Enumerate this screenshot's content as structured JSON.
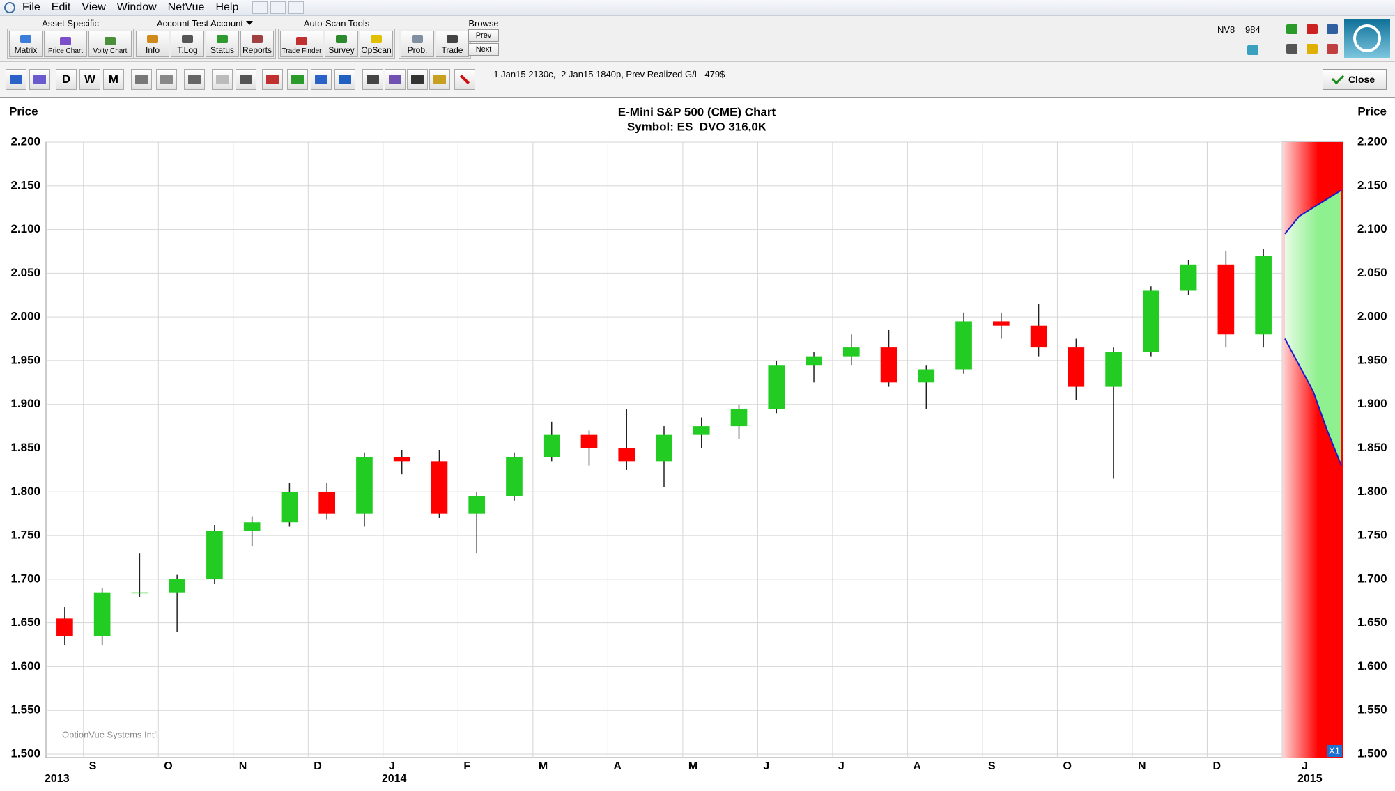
{
  "menu": [
    "File",
    "Edit",
    "View",
    "Window",
    "NetVue",
    "Help"
  ],
  "toolbar": {
    "groups": [
      {
        "label": "Asset Specific",
        "buttons": [
          "Matrix",
          "Price Chart",
          "Volty Chart"
        ]
      },
      {
        "label": "Account Test Account",
        "buttons": [
          "Info",
          "T.Log",
          "Status",
          "Reports"
        ]
      },
      {
        "label": "Auto-Scan Tools",
        "buttons": [
          "Trade Finder",
          "Survey",
          "OpScan"
        ]
      },
      {
        "buttons": [
          "Prob.",
          "Trade"
        ]
      },
      {
        "label": "Browse",
        "buttons": [
          "Prev",
          "Next"
        ]
      }
    ],
    "account": "NV8",
    "account_number": "984"
  },
  "chart_toolbar": {
    "periods": [
      "D",
      "W",
      "M"
    ],
    "position_text": "-1 Jan15 2130c, -2 Jan15 1840p, Prev Realized G/L -479$",
    "close": "Close"
  },
  "chart_data": {
    "type": "candlestick",
    "title": "E-Mini S&P 500 (CME) Chart",
    "subtitle": "Symbol: ES  DVO 316,0K",
    "y_label": "Price",
    "watermark": "OptionVue Systems Int'l",
    "zoom_label": "X1",
    "years": [
      "2013",
      "2014",
      "2015"
    ],
    "categories": [
      null,
      "S",
      null,
      "O",
      null,
      "N",
      null,
      "D",
      null,
      "J",
      null,
      "F",
      null,
      "M",
      null,
      "A",
      null,
      "M",
      null,
      "J",
      null,
      "J",
      null,
      "A",
      null,
      "S",
      null,
      "O",
      null,
      "N",
      null,
      "D",
      null
    ],
    "open": [
      1655,
      1635,
      1685,
      1685,
      1700,
      1755,
      1765,
      1800,
      1775,
      1840,
      1835,
      1775,
      1795,
      1840,
      1865,
      1850,
      1835,
      1865,
      1875,
      1895,
      1945,
      1955,
      1965,
      1925,
      1940,
      1995,
      1990,
      1965,
      1920,
      1960,
      2030,
      2060,
      1980
    ],
    "high": [
      1668,
      1690,
      1730,
      1705,
      1762,
      1772,
      1810,
      1810,
      1845,
      1848,
      1848,
      1800,
      1845,
      1880,
      1870,
      1895,
      1875,
      1885,
      1900,
      1950,
      1960,
      1980,
      1985,
      1945,
      2005,
      2005,
      2015,
      1975,
      1965,
      2035,
      2065,
      2075,
      2078
    ],
    "low": [
      1625,
      1625,
      1680,
      1640,
      1695,
      1738,
      1760,
      1768,
      1760,
      1820,
      1770,
      1730,
      1790,
      1835,
      1830,
      1825,
      1805,
      1850,
      1860,
      1890,
      1925,
      1945,
      1920,
      1895,
      1935,
      1975,
      1955,
      1905,
      1815,
      1955,
      2025,
      1965,
      1965
    ],
    "close": [
      1635,
      1685,
      1685,
      1700,
      1755,
      1765,
      1800,
      1775,
      1840,
      1835,
      1775,
      1795,
      1840,
      1865,
      1850,
      1835,
      1865,
      1875,
      1895,
      1945,
      1955,
      1965,
      1925,
      1940,
      1995,
      1990,
      1965,
      1920,
      1960,
      2030,
      2060,
      1980,
      2070
    ],
    "up_color": "#22cc22",
    "down_color": "#ff0000",
    "cone": {
      "label": "J",
      "upper": [
        2095,
        2115,
        2125,
        2135,
        2145
      ],
      "lower": [
        1975,
        1945,
        1915,
        1870,
        1830
      ],
      "line_color": "#1a1acc",
      "inside_color": "#8ef08e",
      "outside_color": "#ff0000"
    },
    "ylim": [
      1500,
      2200
    ],
    "yticks": [
      {
        "value": 1500,
        "label": "1.500"
      },
      {
        "value": 1550,
        "label": "1.550"
      },
      {
        "value": 1600,
        "label": "1.600"
      },
      {
        "value": 1650,
        "label": "1.650"
      },
      {
        "value": 1700,
        "label": "1.700"
      },
      {
        "value": 1750,
        "label": "1.750"
      },
      {
        "value": 1800,
        "label": "1.800"
      },
      {
        "value": 1850,
        "label": "1.850"
      },
      {
        "value": 1900,
        "label": "1.900"
      },
      {
        "value": 1950,
        "label": "1.950"
      },
      {
        "value": 2000,
        "label": "2.000"
      },
      {
        "value": 2050,
        "label": "2.050"
      },
      {
        "value": 2100,
        "label": "2.100"
      },
      {
        "value": 2150,
        "label": "2.150"
      },
      {
        "value": 2200,
        "label": "2.200"
      }
    ],
    "grid": true
  }
}
